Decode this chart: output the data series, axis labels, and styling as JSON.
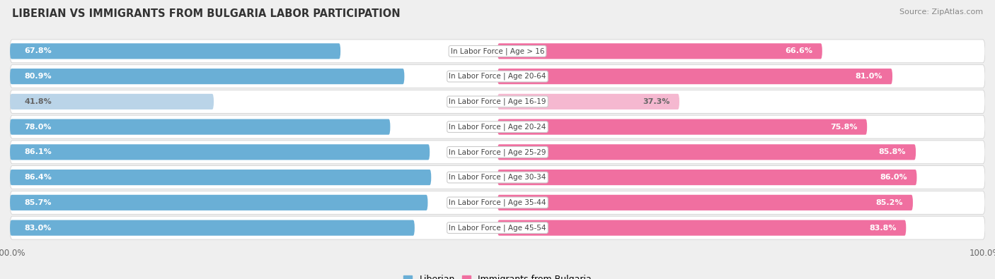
{
  "title": "LIBERIAN VS IMMIGRANTS FROM BULGARIA LABOR PARTICIPATION",
  "source": "Source: ZipAtlas.com",
  "categories": [
    "In Labor Force | Age > 16",
    "In Labor Force | Age 20-64",
    "In Labor Force | Age 16-19",
    "In Labor Force | Age 20-24",
    "In Labor Force | Age 25-29",
    "In Labor Force | Age 30-34",
    "In Labor Force | Age 35-44",
    "In Labor Force | Age 45-54"
  ],
  "liberian_values": [
    67.8,
    80.9,
    41.8,
    78.0,
    86.1,
    86.4,
    85.7,
    83.0
  ],
  "bulgaria_values": [
    66.6,
    81.0,
    37.3,
    75.8,
    85.8,
    86.0,
    85.2,
    83.8
  ],
  "liberian_color": "#6aafd6",
  "liberian_color_light": "#bad4e8",
  "bulgaria_color": "#f06fa0",
  "bulgaria_color_light": "#f5b8d0",
  "background_color": "#efefef",
  "row_bg_color": "#e0e0e0",
  "max_value": 100.0,
  "legend_liberian": "Liberian",
  "legend_bulgaria": "Immigrants from Bulgaria"
}
